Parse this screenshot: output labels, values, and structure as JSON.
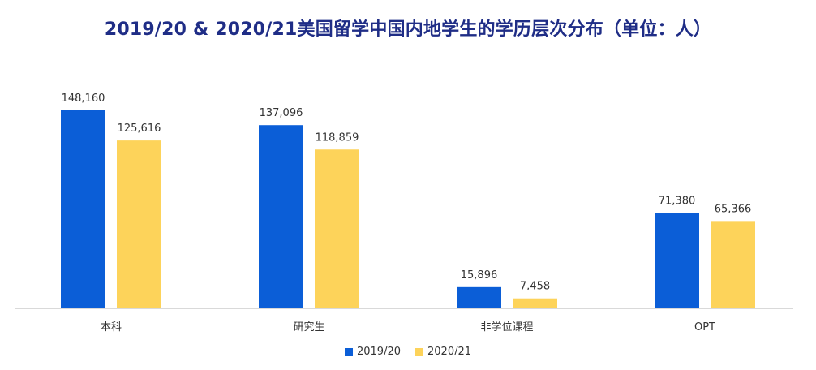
{
  "colors": {
    "series_2019": "#0b5ed7",
    "series_2020": "#fdd35a",
    "title": "#1f2d86",
    "axis": "#d9d9d9",
    "label": "#333333"
  },
  "chart_data": {
    "type": "bar",
    "title": "2019/20 & 2020/21美国留学中国内地学生的学历层次分布（单位：人）",
    "categories": [
      "本科",
      "研究生",
      "非学位课程",
      "OPT"
    ],
    "series": [
      {
        "name": "2019/20",
        "values": [
          148160,
          137096,
          15896,
          71380
        ],
        "labels": [
          "148,160",
          "137,096",
          "15,896",
          "71,380"
        ]
      },
      {
        "name": "2020/21",
        "values": [
          125616,
          118859,
          7458,
          65366
        ],
        "labels": [
          "125,616",
          "118,859",
          "7,458",
          "65,366"
        ]
      }
    ],
    "xlabel": "",
    "ylabel": "",
    "ylim": [
      0,
      148160
    ],
    "grid": false,
    "legend": "bottom"
  }
}
